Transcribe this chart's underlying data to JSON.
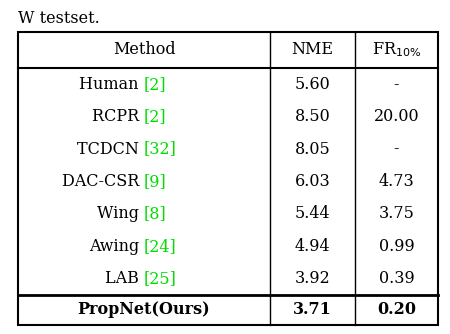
{
  "caption_text": "W testset.",
  "rows": [
    {
      "method_black": "Human ",
      "method_green": "[2]",
      "nme": "5.60",
      "fr": "-"
    },
    {
      "method_black": "RCPR ",
      "method_green": "[2]",
      "nme": "8.50",
      "fr": "20.00"
    },
    {
      "method_black": "TCDCN ",
      "method_green": "[32]",
      "nme": "8.05",
      "fr": "-"
    },
    {
      "method_black": "DAC-CSR ",
      "method_green": "[9]",
      "nme": "6.03",
      "fr": "4.73"
    },
    {
      "method_black": "Wing ",
      "method_green": "[8]",
      "nme": "5.44",
      "fr": "3.75"
    },
    {
      "method_black": "Awing ",
      "method_green": "[24]",
      "nme": "4.94",
      "fr": "0.99"
    },
    {
      "method_black": "LAB ",
      "method_green": "[25]",
      "nme": "3.92",
      "fr": "0.39"
    }
  ],
  "last_row": {
    "method": "PropNet(Ours)",
    "nme": "3.71",
    "fr": "0.20"
  },
  "black_color": "#000000",
  "green_color": "#00dd00",
  "bg_color": "#ffffff",
  "fontsize": 11.5
}
